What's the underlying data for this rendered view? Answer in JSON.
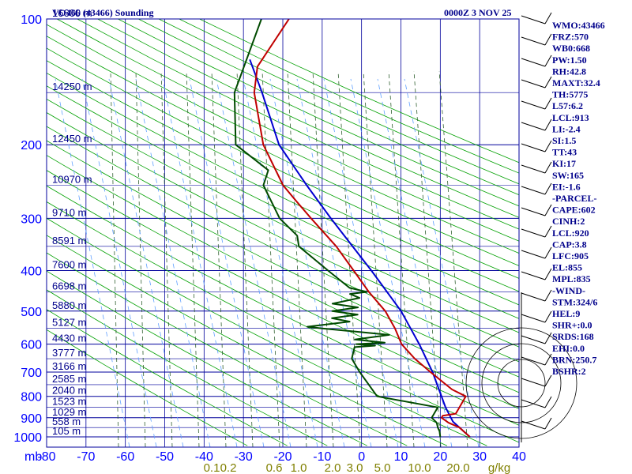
{
  "chart_data": {
    "type": "skew-t sounding",
    "title": "VO466 (43466) Sounding",
    "datetime": "0000Z  3 NOV 25",
    "pressure_axis_unit": "mb",
    "pressure_levels": [
      100,
      200,
      300,
      400,
      500,
      600,
      700,
      800,
      900,
      1000
    ],
    "temperature_ticks": [
      -80,
      -70,
      -60,
      -50,
      -40,
      -30,
      -20,
      -10,
      0,
      10,
      20,
      30,
      40
    ],
    "mixing_ratio_labels": [
      "0.1",
      "0.2",
      "0.6",
      "1.0",
      "2.0",
      "3.0",
      "5.0",
      "10.0",
      "20.0",
      "g/kg"
    ],
    "height_labels": [
      {
        "text": "16600 m",
        "p": 100
      },
      {
        "text": "14250 m",
        "p": 150
      },
      {
        "text": "12450 m",
        "p": 200
      },
      {
        "text": "10970 m",
        "p": 250
      },
      {
        "text": "9710 m",
        "p": 300
      },
      {
        "text": "8591 m",
        "p": 350
      },
      {
        "text": "7600 m",
        "p": 400
      },
      {
        "text": "6698 m",
        "p": 450
      },
      {
        "text": "5880 m",
        "p": 500
      },
      {
        "text": "5127 m",
        "p": 550
      },
      {
        "text": "4430 m",
        "p": 600
      },
      {
        "text": "3777 m",
        "p": 650
      },
      {
        "text": "3166 m",
        "p": 700
      },
      {
        "text": "2585 m",
        "p": 750
      },
      {
        "text": "2040 m",
        "p": 800
      },
      {
        "text": "1523 m",
        "p": 850
      },
      {
        "text": "1029 m",
        "p": 900
      },
      {
        "text": "558 m",
        "p": 950
      },
      {
        "text": "105 m",
        "p": 1000
      }
    ],
    "temperature_profile": [
      {
        "p": 1000,
        "t": 27.5
      },
      {
        "p": 950,
        "t": 23.5
      },
      {
        "p": 925,
        "t": 20
      },
      {
        "p": 900,
        "t": 17.5
      },
      {
        "p": 890,
        "t": 17.5
      },
      {
        "p": 880,
        "t": 20.5
      },
      {
        "p": 850,
        "t": 20.5
      },
      {
        "p": 800,
        "t": 20.5
      },
      {
        "p": 770,
        "t": 16
      },
      {
        "p": 700,
        "t": 8
      },
      {
        "p": 650,
        "t": 2
      },
      {
        "p": 600,
        "t": -3.5
      },
      {
        "p": 550,
        "t": -7.5
      },
      {
        "p": 500,
        "t": -12.5
      },
      {
        "p": 450,
        "t": -19.5
      },
      {
        "p": 400,
        "t": -26.5
      },
      {
        "p": 350,
        "t": -34.5
      },
      {
        "p": 300,
        "t": -45
      },
      {
        "p": 270,
        "t": -52
      },
      {
        "p": 250,
        "t": -57
      },
      {
        "p": 200,
        "t": -68
      },
      {
        "p": 150,
        "t": -78
      },
      {
        "p": 130,
        "t": -81
      },
      {
        "p": 100,
        "t": -80
      }
    ],
    "dewpoint_profile": [
      {
        "p": 1000,
        "t": 20
      },
      {
        "p": 970,
        "t": 19
      },
      {
        "p": 950,
        "t": 18
      },
      {
        "p": 925,
        "t": 17
      },
      {
        "p": 900,
        "t": 15
      },
      {
        "p": 880,
        "t": 15
      },
      {
        "p": 850,
        "t": 15
      },
      {
        "p": 800,
        "t": -2
      },
      {
        "p": 700,
        "t": -10
      },
      {
        "p": 650,
        "t": -14
      },
      {
        "p": 610,
        "t": -15
      },
      {
        "p": 605,
        "t": -10
      },
      {
        "p": 600,
        "t": -15
      },
      {
        "p": 595,
        "t": -8
      },
      {
        "p": 585,
        "t": -16
      },
      {
        "p": 570,
        "t": -8
      },
      {
        "p": 560,
        "t": -17
      },
      {
        "p": 550,
        "t": -26
      },
      {
        "p": 545,
        "t": -30
      },
      {
        "p": 530,
        "t": -20
      },
      {
        "p": 520,
        "t": -25
      },
      {
        "p": 510,
        "t": -19
      },
      {
        "p": 500,
        "t": -26
      },
      {
        "p": 490,
        "t": -20
      },
      {
        "p": 480,
        "t": -27
      },
      {
        "p": 465,
        "t": -21
      },
      {
        "p": 455,
        "t": -24
      },
      {
        "p": 450,
        "t": -20
      },
      {
        "p": 440,
        "t": -25
      },
      {
        "p": 400,
        "t": -33
      },
      {
        "p": 350,
        "t": -44
      },
      {
        "p": 330,
        "t": -46
      },
      {
        "p": 300,
        "t": -53
      },
      {
        "p": 250,
        "t": -62
      },
      {
        "p": 230,
        "t": -63
      },
      {
        "p": 200,
        "t": -75
      },
      {
        "p": 150,
        "t": -83
      },
      {
        "p": 100,
        "t": -87
      }
    ],
    "parcel_profile": [
      {
        "p": 1000,
        "t": 27.5
      },
      {
        "p": 920,
        "t": 21
      },
      {
        "p": 850,
        "t": 17
      },
      {
        "p": 700,
        "t": 8.5
      },
      {
        "p": 600,
        "t": 1
      },
      {
        "p": 500,
        "t": -8.5
      },
      {
        "p": 400,
        "t": -22
      },
      {
        "p": 300,
        "t": -40
      },
      {
        "p": 250,
        "t": -51
      },
      {
        "p": 200,
        "t": -64
      },
      {
        "p": 150,
        "t": -76
      },
      {
        "p": 125,
        "t": -84
      }
    ],
    "indices": [
      "WMO:43466",
      "FRZ:570",
      "WB0:668",
      "PW:1.50",
      "RH:42.8",
      "MAXT:32.4",
      "TH:5775",
      "L57:6.2",
      "LCL:913",
      "LI:-2.4",
      "SI:1.5",
      "TT:43",
      "KI:17",
      "SW:165",
      "EI:-1.6",
      "-PARCEL-",
      "CAPE:602",
      "CINH:2",
      "LCL:920",
      "CAP:3.8",
      "LFC:905",
      "EL:855",
      "MPL:835",
      "-WIND-",
      "STM:324/6",
      "HEL:9",
      "SHR+:0.0",
      "SRDS:168",
      "EHI:0.0",
      "BRN:250.7",
      "BSHR:2"
    ]
  },
  "colors": {
    "isobar": "#00009c",
    "isotherm": "#00009c",
    "dry_adiabat": "#00a000",
    "moist_adiabat": "#306030",
    "mixing_ratio": "#60a0ff",
    "temperature": "#c00000",
    "dewpoint": "#004a00",
    "parcel": "#0000d0"
  }
}
